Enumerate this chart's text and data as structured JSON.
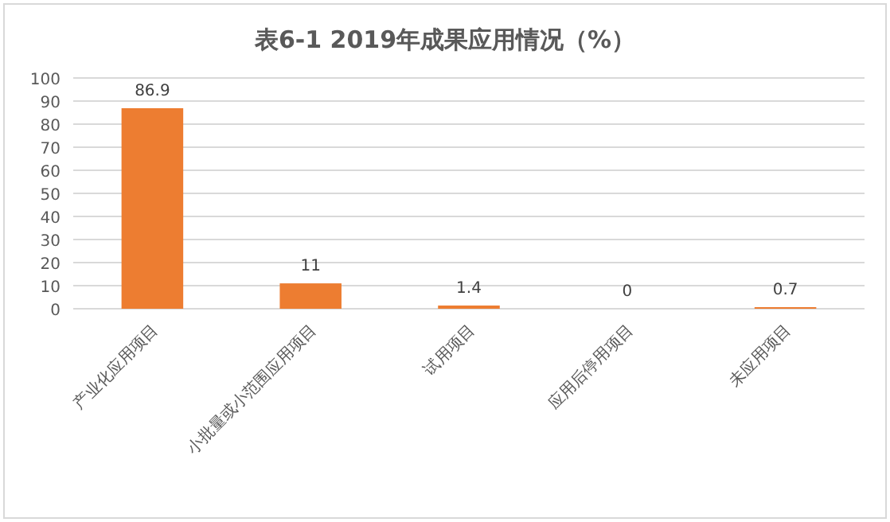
{
  "chart_data": {
    "type": "bar",
    "title": "表6-1 2019年成果应用情况（%）",
    "categories": [
      "产业化应用项目",
      "小批量或小范围应用项目",
      "试用项目",
      "应用后停用项目",
      "未应用项目"
    ],
    "values": [
      86.9,
      11,
      1.4,
      0,
      0.7
    ],
    "color": "#ed7d31",
    "ylim": [
      0,
      100
    ],
    "yticks": [
      0,
      10,
      20,
      30,
      40,
      50,
      60,
      70,
      80,
      90,
      100
    ],
    "grid": "y",
    "data_labels": true
  }
}
